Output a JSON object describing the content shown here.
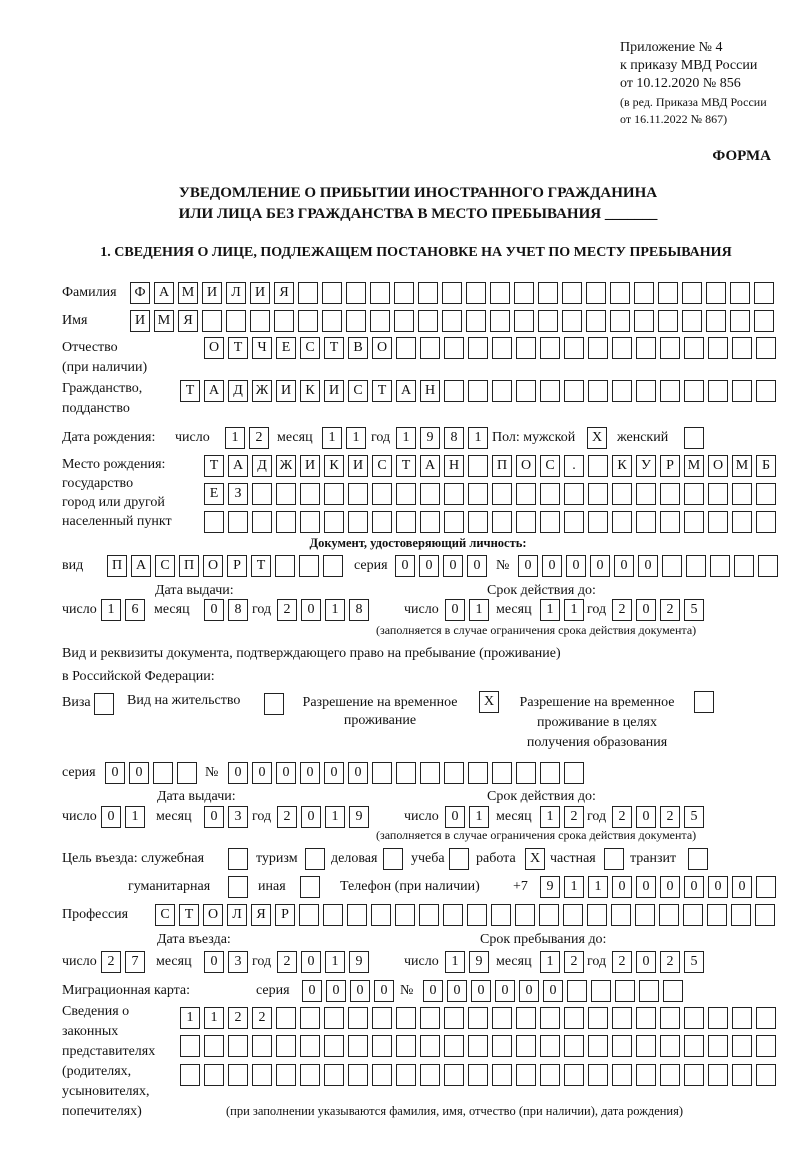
{
  "header": {
    "appendix": "Приложение № 4",
    "order": "к приказу МВД России",
    "order_date": "от 10.12.2020 № 856",
    "edition1": "(в ред. Приказа МВД России",
    "edition2": "от 16.11.2022 № 867)",
    "form_label": "ФОРМА",
    "title1": "УВЕДОМЛЕНИЕ О ПРИБЫТИИ ИНОСТРАННОГО ГРАЖДАНИНА",
    "title2": "ИЛИ ЛИЦА БЕЗ ГРАЖДАНСТВА В МЕСТО ПРЕБЫВАНИЯ _______",
    "section1": "1. СВЕДЕНИЯ О ЛИЦЕ, ПОДЛЕЖАЩЕМ ПОСТАНОВКЕ НА УЧЕТ ПО МЕСТУ ПРЕБЫВАНИЯ"
  },
  "labels": {
    "surname": "Фамилия",
    "name": "Имя",
    "patronymic": "Отчество",
    "patronymic_note": "(при наличии)",
    "citizenship1": "Гражданство,",
    "citizenship2": "подданство",
    "birth_date": "Дата рождения:",
    "day": "число",
    "month": "месяц",
    "year": "год",
    "sex": "Пол: мужской",
    "female": "женский",
    "birth_place1": "Место рождения:",
    "birth_place2": "государство",
    "birth_place3": "город или другой",
    "birth_place4": "населенный пункт",
    "id_doc": "Документ, удостоверяющий личность:",
    "kind": "вид",
    "series": "серия",
    "number": "№",
    "issue_date": "Дата выдачи:",
    "valid_until": "Срок действия до:",
    "validity_note": "(заполняется в случае ограничения срока действия документа)",
    "right_doc1": "Вид и реквизиты документа, подтверждающего право на пребывание (проживание)",
    "right_doc2": "в Российской Федерации:",
    "visa": "Виза",
    "residence": "Вид на жительство",
    "temp_permit1": "Разрешение на временное",
    "temp_permit2": "проживание",
    "edu_permit1": "Разрешение на временное",
    "edu_permit2": "проживание в целях",
    "edu_permit3": "получения образования",
    "purpose": "Цель въезда: служебная",
    "tourism": "туризм",
    "business": "деловая",
    "study": "учеба",
    "work": "работа",
    "private": "частная",
    "transit": "транзит",
    "humanitarian": "гуманитарная",
    "other": "иная",
    "phone": "Телефон (при наличии)",
    "phone_prefix": "+7",
    "profession": "Профессия",
    "entry_date": "Дата въезда:",
    "stay_until": "Срок пребывания до:",
    "migration_card": "Миграционная карта:",
    "reps1": "Сведения о",
    "reps2": "законных",
    "reps3": "представителях",
    "reps4": "(родителях,",
    "reps5": "усыновителях,",
    "reps6": "попечителях)",
    "reps_note": "(при заполнении указываются фамилия, имя, отчество (при наличии), дата рождения)"
  },
  "values": {
    "surname": "ФАМИЛИЯ",
    "name": "ИМЯ",
    "patronymic": "ОТЧЕСТВО",
    "citizenship": "ТАДЖИКИСТАН",
    "birth_day": "12",
    "birth_month": "11",
    "birth_year": "1981",
    "male": "X",
    "female": "",
    "birth_place_1": "ТАДЖИКИСТАН ПОС. КУРМОМБ",
    "birth_place_2": "ЕЗ",
    "birth_place_3": "",
    "doc_kind": "ПАСПОРТ",
    "doc_series": "0000",
    "doc_number": "000000",
    "doc_issue_day": "16",
    "doc_issue_month": "08",
    "doc_issue_year": "2018",
    "doc_valid_day": "01",
    "doc_valid_month": "11",
    "doc_valid_year": "2025",
    "visa": "",
    "residence": "",
    "temp_permit": "X",
    "edu_permit": "",
    "rd_series": "00",
    "rd_number": "000000",
    "rd_issue_day": "01",
    "rd_issue_month": "03",
    "rd_issue_year": "2019",
    "rd_valid_day": "01",
    "rd_valid_month": "12",
    "rd_valid_year": "2025",
    "p_official": "",
    "p_tourism": "",
    "p_business": "",
    "p_study": "",
    "p_work": "X",
    "p_private": "",
    "p_transit": "",
    "p_humanitarian": "",
    "p_other": "",
    "phone": "911000000",
    "profession": "СТОЛЯР",
    "entry_day": "27",
    "entry_month": "03",
    "entry_year": "2019",
    "stay_day": "19",
    "stay_month": "12",
    "stay_year": "2025",
    "mc_series": "0000",
    "mc_number": "000000",
    "reps_1": "1122",
    "reps_2": "",
    "reps_3": ""
  }
}
